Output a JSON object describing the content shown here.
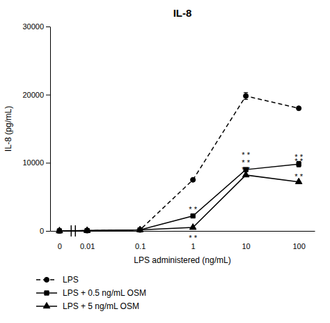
{
  "chart_data": {
    "type": "line",
    "title": "IL-8",
    "x_label": "LPS administered (ng/mL)",
    "y_label": "IL-8 (pg/mL)",
    "log": "x",
    "x": [
      0.003,
      0.01,
      0.1,
      1,
      10,
      100
    ],
    "series": [
      {
        "name": "LPS",
        "color": "#000000",
        "line_style": "dashed",
        "marker": "circle",
        "values": [
          0,
          50,
          150,
          7500,
          19800,
          18000
        ],
        "errors": [
          0,
          0,
          0,
          0,
          500,
          0
        ]
      },
      {
        "name": "LPS + 0.5 ng/mL OSM",
        "color": "#000000",
        "line_style": "solid",
        "marker": "square",
        "values": [
          0,
          50,
          150,
          2200,
          9000,
          9800
        ],
        "errors": [
          0,
          0,
          0,
          0,
          0,
          400
        ]
      },
      {
        "name": "LPS + 5 ng/mL OSM",
        "color": "#000000",
        "line_style": "solid",
        "marker": "triangle",
        "values": [
          0,
          50,
          150,
          500,
          8200,
          7200
        ],
        "errors": [
          0,
          0,
          0,
          0,
          0,
          0
        ]
      }
    ],
    "annotations": [
      {
        "x": 1,
        "y": 3200,
        "text": "* *"
      },
      {
        "x": 1,
        "y": -1000,
        "text": "* *"
      },
      {
        "x": 10,
        "y": 11200,
        "text": "* *"
      },
      {
        "x": 10,
        "y": 10000,
        "text": "* *"
      },
      {
        "x": 10,
        "y": 9000,
        "text": "* *"
      },
      {
        "x": 100,
        "y": 10900,
        "text": "* *"
      },
      {
        "x": 100,
        "y": 10200,
        "text": "* *"
      },
      {
        "x": 100,
        "y": 8000,
        "text": "* *"
      }
    ],
    "xlim": [
      0.002,
      200
    ],
    "xticks": [
      {
        "value": 0.003,
        "label": "0"
      },
      0.01,
      0.1,
      1,
      10,
      100
    ],
    "ylim": [
      0,
      30000
    ],
    "yticks": [
      0,
      10000,
      20000,
      30000
    ],
    "grid": false,
    "legend": "bottom"
  }
}
